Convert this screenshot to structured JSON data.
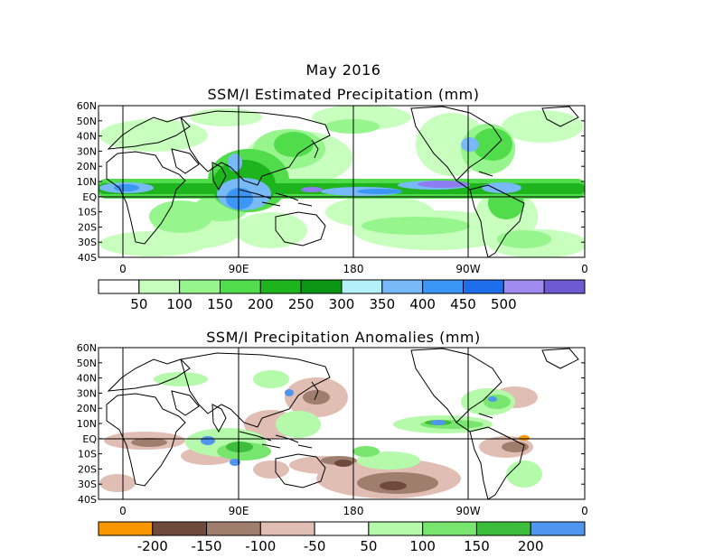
{
  "header": {
    "month_label": "May 2016",
    "top_title": "SSM/I Estimated Precipitation (mm)",
    "bottom_title": "SSM/I Precipitation Anomalies (mm)"
  },
  "axes": {
    "lat_labels": [
      "60N",
      "50N",
      "40N",
      "30N",
      "20N",
      "10N",
      "EQ",
      "10S",
      "20S",
      "30S",
      "40S"
    ],
    "lon_labels": [
      "0",
      "90E",
      "180",
      "90W",
      "0"
    ]
  },
  "colorbars": {
    "precip": {
      "labels": [
        "50",
        "100",
        "150",
        "200",
        "250",
        "300",
        "350",
        "400",
        "450",
        "500"
      ],
      "colors": [
        "#ffffff",
        "#c8ffbe",
        "#96f58c",
        "#50dc4b",
        "#1eb41e",
        "#0a9614",
        "#b4f0fa",
        "#78b9fa",
        "#3c96f5",
        "#1e6eeb",
        "#a08cf0",
        "#6e5ad2"
      ]
    },
    "anomaly": {
      "labels": [
        "-200",
        "-150",
        "-100",
        "-50",
        "50",
        "100",
        "150",
        "200"
      ],
      "colors": [
        "#fa9600",
        "#6e4a3c",
        "#a07e6e",
        "#e1beb4",
        "#ffffff",
        "#b4faaa",
        "#78e66e",
        "#3cbe3c",
        "#5096f0"
      ]
    }
  },
  "chart_data": [
    {
      "type": "heatmap",
      "title": "SSM/I Estimated Precipitation (mm)",
      "period": "May 2016",
      "x_range": [
        "0",
        "0"
      ],
      "y_range": [
        "40S",
        "60N"
      ],
      "colorbar_levels": [
        50,
        100,
        150,
        200,
        250,
        300,
        350,
        400,
        450,
        500
      ],
      "features": [
        {
          "region": "ITCZ Pacific/Atlantic ~5N-10N",
          "level": "300-500"
        },
        {
          "region": "Maritime Continent / Indonesia",
          "level": "300-450"
        },
        {
          "region": "Bay of Bengal / East Asia",
          "level": "200-400"
        },
        {
          "region": "SPCZ",
          "level": "100-200"
        },
        {
          "region": "Eastern United States",
          "level": "200-350"
        }
      ]
    },
    {
      "type": "heatmap",
      "title": "SSM/I Precipitation Anomalies (mm)",
      "period": "May 2016",
      "x_range": [
        "0",
        "0"
      ],
      "y_range": [
        "40S",
        "60N"
      ],
      "colorbar_levels": [
        -200,
        -150,
        -100,
        -50,
        50,
        100,
        150,
        200
      ],
      "features": [
        {
          "region": "Maritime Continent",
          "sign": "positive",
          "level": "50-200"
        },
        {
          "region": "Central South Pacific",
          "sign": "negative",
          "level": "-50 to -150"
        },
        {
          "region": "Northwest Pacific",
          "sign": "negative",
          "level": "-50 to -100"
        },
        {
          "region": "Northern South America",
          "sign": "negative",
          "level": "-50 to -200"
        },
        {
          "region": "Equatorial East Pacific ITCZ",
          "sign": "positive",
          "level": "50-200"
        }
      ]
    }
  ]
}
